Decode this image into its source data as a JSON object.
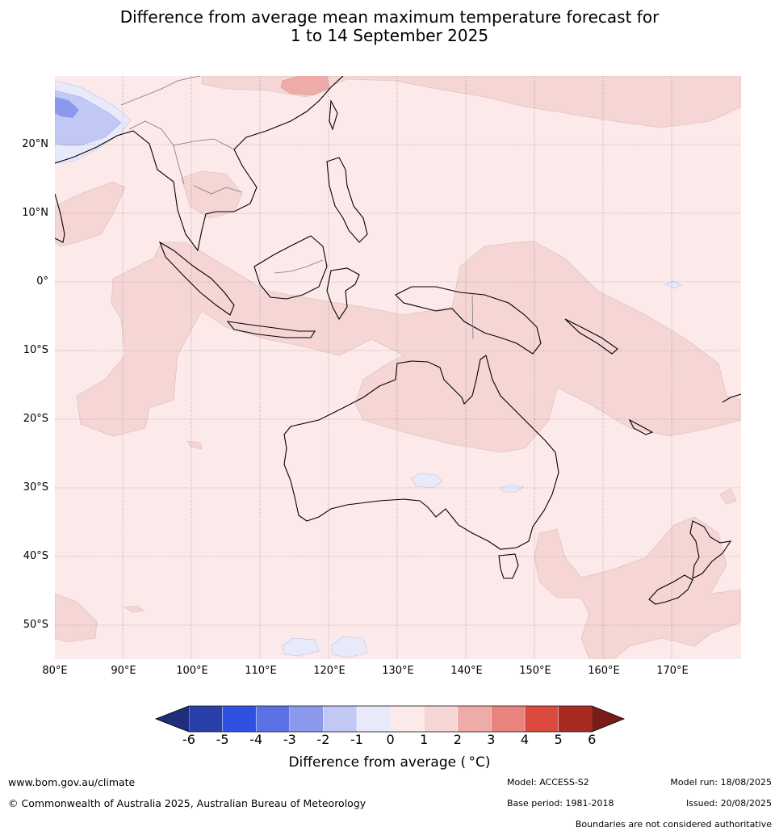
{
  "title_line1": "Difference from average mean maximum temperature forecast for",
  "title_line2": "1 to 14 September 2025",
  "lat_labels": [
    "20°N",
    "10°N",
    "0°",
    "10°S",
    "20°S",
    "30°S",
    "40°S",
    "50°S"
  ],
  "lon_labels": [
    "80°E",
    "90°E",
    "100°E",
    "110°E",
    "120°E",
    "130°E",
    "140°E",
    "150°E",
    "160°E",
    "170°E"
  ],
  "colorbar": {
    "ticks": [
      "-6",
      "-5",
      "-4",
      "-3",
      "-2",
      "-1",
      "0",
      "1",
      "2",
      "3",
      "4",
      "5",
      "6"
    ],
    "colors": [
      "#283ea8",
      "#2f50e0",
      "#5a72e4",
      "#8a99ec",
      "#c0c8f3",
      "#e8eafa",
      "#fceaea",
      "#f5d6d5",
      "#eeaca8",
      "#e8847d",
      "#dc4a3e",
      "#a72b22"
    ],
    "under_color": "#1f2d7a",
    "over_color": "#7a1d18",
    "label": "Difference from average ( °C)"
  },
  "footer": {
    "site": "www.bom.gov.au/climate",
    "copyright": "© Commonwealth of Australia 2025, Australian Bureau of Meteorology",
    "model": "Model: ACCESS-S2",
    "model_run": "Model run: 18/08/2025",
    "base_period": "Base period: 1981-2018",
    "issued": "Issued: 20/08/2025",
    "disclaimer": "Boundaries are not considered authoritative"
  }
}
